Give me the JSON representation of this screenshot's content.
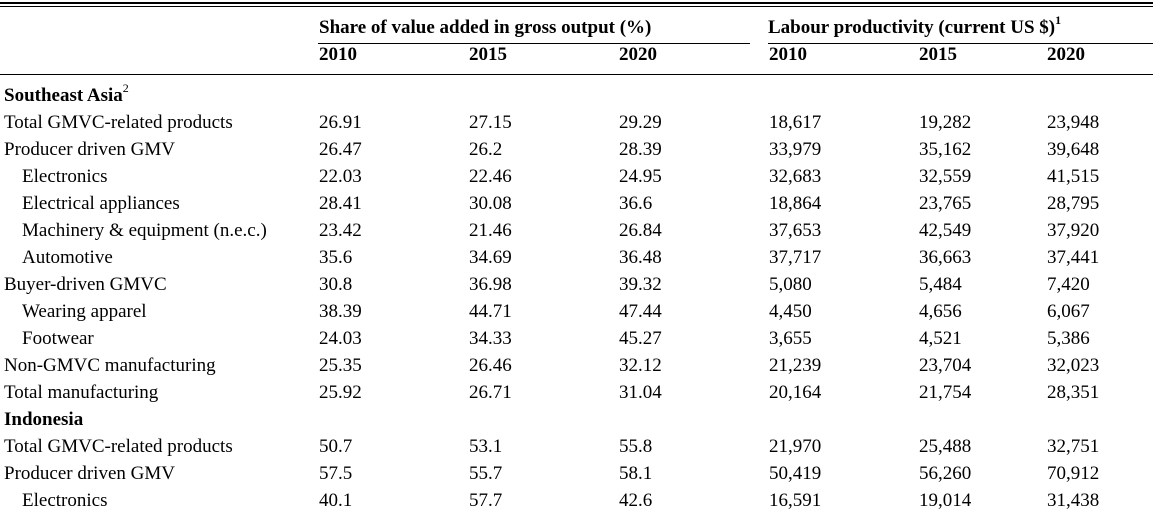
{
  "headers": {
    "group1": "Share of value added in gross output (%)",
    "group2": "Labour productivity (current US $)",
    "group2_sup": "1",
    "years": [
      "2010",
      "2015",
      "2020",
      "2010",
      "2015",
      "2020"
    ]
  },
  "sections": [
    {
      "title": "Southeast Asia",
      "title_sup": "2",
      "rows": [
        {
          "label": "Total GMVC-related products",
          "indent": false,
          "values": [
            "26.91",
            "27.15",
            "29.29",
            "18,617",
            "19,282",
            "23,948"
          ]
        },
        {
          "label": "Producer driven GMV",
          "indent": false,
          "values": [
            "26.47",
            "26.2",
            "28.39",
            "33,979",
            "35,162",
            "39,648"
          ]
        },
        {
          "label": "Electronics",
          "indent": true,
          "values": [
            "22.03",
            "22.46",
            "24.95",
            "32,683",
            "32,559",
            "41,515"
          ]
        },
        {
          "label": "Electrical appliances",
          "indent": true,
          "values": [
            "28.41",
            "30.08",
            "36.6",
            "18,864",
            "23,765",
            "28,795"
          ]
        },
        {
          "label": "Machinery & equipment (n.e.c.)",
          "indent": true,
          "values": [
            "23.42",
            "21.46",
            "26.84",
            "37,653",
            "42,549",
            "37,920"
          ]
        },
        {
          "label": "Automotive",
          "indent": true,
          "values": [
            "35.6",
            "34.69",
            "36.48",
            "37,717",
            "36,663",
            "37,441"
          ]
        },
        {
          "label": "Buyer-driven GMVC",
          "indent": false,
          "values": [
            "30.8",
            "36.98",
            "39.32",
            "5,080",
            "5,484",
            "7,420"
          ]
        },
        {
          "label": "Wearing apparel",
          "indent": true,
          "values": [
            "38.39",
            "44.71",
            "47.44",
            "4,450",
            "4,656",
            "6,067"
          ]
        },
        {
          "label": "Footwear",
          "indent": true,
          "values": [
            "24.03",
            "34.33",
            "45.27",
            "3,655",
            "4,521",
            "5,386"
          ]
        },
        {
          "label": "Non-GMVC manufacturing",
          "indent": false,
          "values": [
            "25.35",
            "26.46",
            "32.12",
            "21,239",
            "23,704",
            "32,023"
          ]
        },
        {
          "label": "Total manufacturing",
          "indent": false,
          "values": [
            "25.92",
            "26.71",
            "31.04",
            "20,164",
            "21,754",
            "28,351"
          ]
        }
      ]
    },
    {
      "title": "Indonesia",
      "title_sup": "",
      "rows": [
        {
          "label": "Total GMVC-related products",
          "indent": false,
          "values": [
            "50.7",
            "53.1",
            "55.8",
            "21,970",
            "25,488",
            "32,751"
          ]
        },
        {
          "label": "Producer driven GMV",
          "indent": false,
          "values": [
            "57.5",
            "55.7",
            "58.1",
            "50,419",
            "56,260",
            "70,912"
          ]
        },
        {
          "label": "Electronics",
          "indent": true,
          "values": [
            "40.1",
            "57.7",
            "42.6",
            "16,591",
            "19,014",
            "31,438"
          ]
        }
      ]
    }
  ]
}
